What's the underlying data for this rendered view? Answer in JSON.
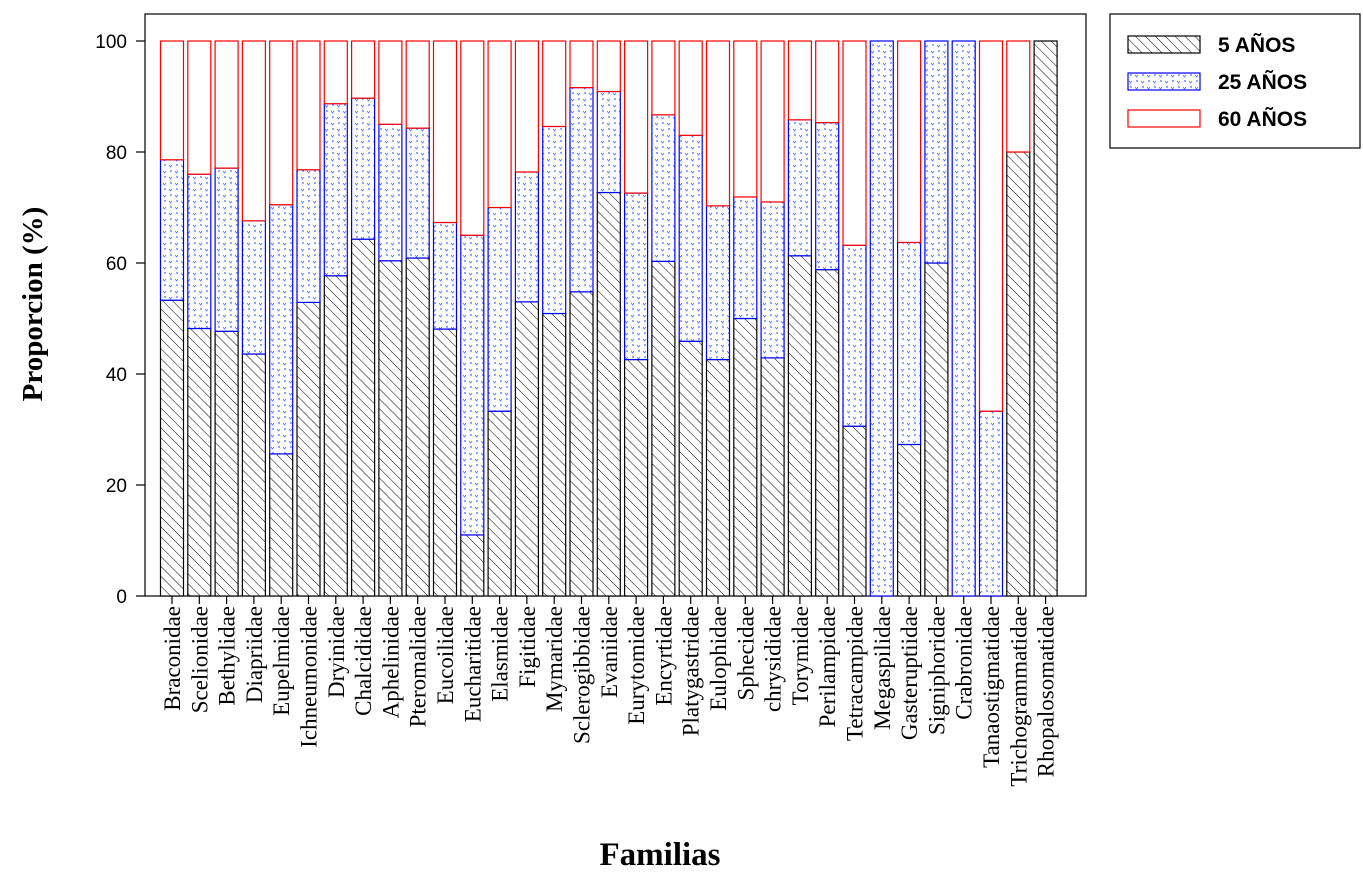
{
  "chart_data": {
    "type": "bar",
    "stacked": true,
    "xlabel": "Familias",
    "ylabel": "Proporcion (%)",
    "ylim": [
      0,
      100
    ],
    "yticks": [
      0,
      20,
      40,
      60,
      80,
      100
    ],
    "grid": false,
    "legend_position": "top-right",
    "categories": [
      "Braconidae",
      "Scelionidae",
      "Bethylidae",
      "Diapriidae",
      "Eupelmidae",
      "Ichneumonidae",
      "Dryinidae",
      "Chalcididae",
      "Aphelinidae",
      "Pteromalidae",
      "Eucoilidae",
      "Eucharitidae",
      "Elasmidae",
      "Figitidae",
      "Mymaridae",
      "Sclerogibbidae",
      "Evaniidae",
      "Eurytomidae",
      "Encyrtidae",
      "Platygastridae",
      "Eulophidae",
      "Sphecidae",
      "chrysididae",
      "Torymidae",
      "Perilampidae",
      "Tetracampidae",
      "Megaspilidae",
      "Gasteruptiidae",
      "Signiphoridae",
      "Crabronidae",
      "Tanaostigmatidae",
      "Trichogrammatidae",
      "Rhopalosomatidae"
    ],
    "series": [
      {
        "name": "5 AÑOS",
        "color": "#000000",
        "pattern": "hatch",
        "values": [
          53.3,
          48.2,
          47.7,
          43.6,
          25.6,
          52.9,
          57.7,
          64.3,
          60.4,
          60.9,
          48.1,
          11.0,
          33.3,
          53.0,
          50.9,
          54.8,
          72.7,
          42.6,
          60.3,
          45.9,
          42.6,
          50.0,
          42.9,
          61.3,
          58.8,
          30.6,
          0,
          27.3,
          60.0,
          0,
          0,
          80.0,
          100
        ]
      },
      {
        "name": "25 AÑOS",
        "color": "#0000ff",
        "pattern": "dots",
        "values": [
          25.3,
          27.8,
          29.4,
          24.0,
          44.9,
          23.9,
          31.0,
          25.4,
          24.6,
          23.4,
          19.2,
          54.0,
          36.7,
          23.4,
          33.7,
          36.8,
          18.2,
          30.0,
          26.4,
          37.1,
          27.7,
          21.9,
          28.1,
          24.5,
          26.5,
          32.6,
          100,
          36.4,
          40.0,
          100,
          33.3,
          0,
          0
        ]
      },
      {
        "name": "60 AÑOS",
        "color": "#ff0000",
        "pattern": "none",
        "values": [
          21.4,
          24.0,
          22.9,
          32.4,
          29.5,
          23.2,
          11.3,
          10.3,
          15.0,
          15.7,
          32.7,
          35.0,
          30.0,
          23.6,
          15.4,
          8.4,
          9.1,
          27.4,
          13.3,
          17.0,
          29.7,
          28.1,
          29.0,
          14.2,
          14.7,
          36.8,
          0,
          36.3,
          0,
          0,
          66.7,
          20.0,
          0
        ]
      }
    ]
  }
}
